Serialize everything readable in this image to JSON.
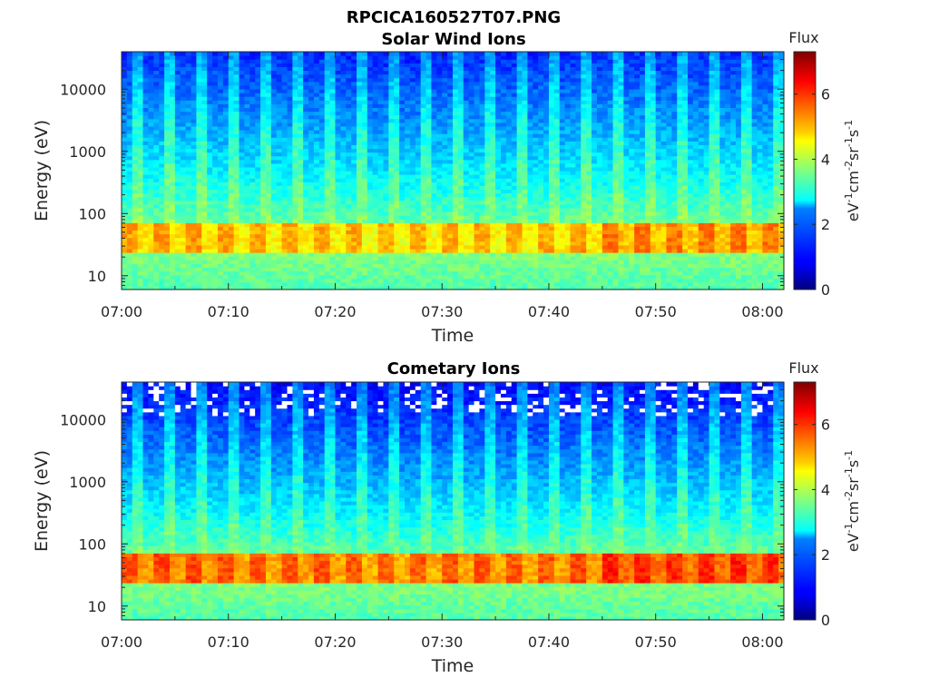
{
  "figure": {
    "title": "RPCICA160527T07.PNG"
  },
  "chart_data": [
    {
      "type": "heatmap",
      "title": "Solar Wind Ions",
      "xlabel": "Time",
      "ylabel": "Energy (eV)",
      "y_scale": "log",
      "xlim": [
        "07:00",
        "08:02"
      ],
      "ylim": [
        6,
        40000
      ],
      "x_ticks": [
        "07:00",
        "07:10",
        "07:20",
        "07:30",
        "07:40",
        "07:50",
        "08:00"
      ],
      "y_ticks": [
        10,
        100,
        1000,
        10000
      ],
      "y_tick_labels": [
        "10",
        "100",
        "1000",
        "10000"
      ],
      "colorbar": {
        "label": "Flux",
        "unit_label": "eV-1cm-2sr-1s-1",
        "range": [
          0,
          7.3
        ],
        "ticks": [
          0,
          2,
          4,
          6
        ],
        "tick_labels": [
          "0",
          "2",
          "4",
          "6"
        ],
        "colormap": "jet"
      },
      "features": {
        "band_energy_eV": [
          25,
          60
        ],
        "band_flux": 4.8,
        "background_high_energy_flux": 1.2,
        "spike_period_minutes": 3,
        "spike_flux": 3.2
      }
    },
    {
      "type": "heatmap",
      "title": "Cometary Ions",
      "xlabel": "Time",
      "ylabel": "Energy (eV)",
      "y_scale": "log",
      "xlim": [
        "07:00",
        "08:02"
      ],
      "ylim": [
        6,
        40000
      ],
      "x_ticks": [
        "07:00",
        "07:10",
        "07:20",
        "07:30",
        "07:40",
        "07:50",
        "08:00"
      ],
      "y_ticks": [
        10,
        100,
        1000,
        10000
      ],
      "y_tick_labels": [
        "10",
        "100",
        "1000",
        "10000"
      ],
      "colorbar": {
        "label": "Flux",
        "unit_label": "eV-1cm-2sr-1s-1",
        "range": [
          0,
          7.3
        ],
        "ticks": [
          0,
          2,
          4,
          6
        ],
        "tick_labels": [
          "0",
          "2",
          "4",
          "6"
        ],
        "colormap": "jet"
      },
      "features": {
        "band_energy_eV": [
          25,
          60
        ],
        "band_flux": 5.4,
        "background_high_energy_flux": 0.9,
        "spike_period_minutes": 3,
        "spike_flux": 3.0,
        "missing_data_above_eV": 12000
      }
    }
  ]
}
